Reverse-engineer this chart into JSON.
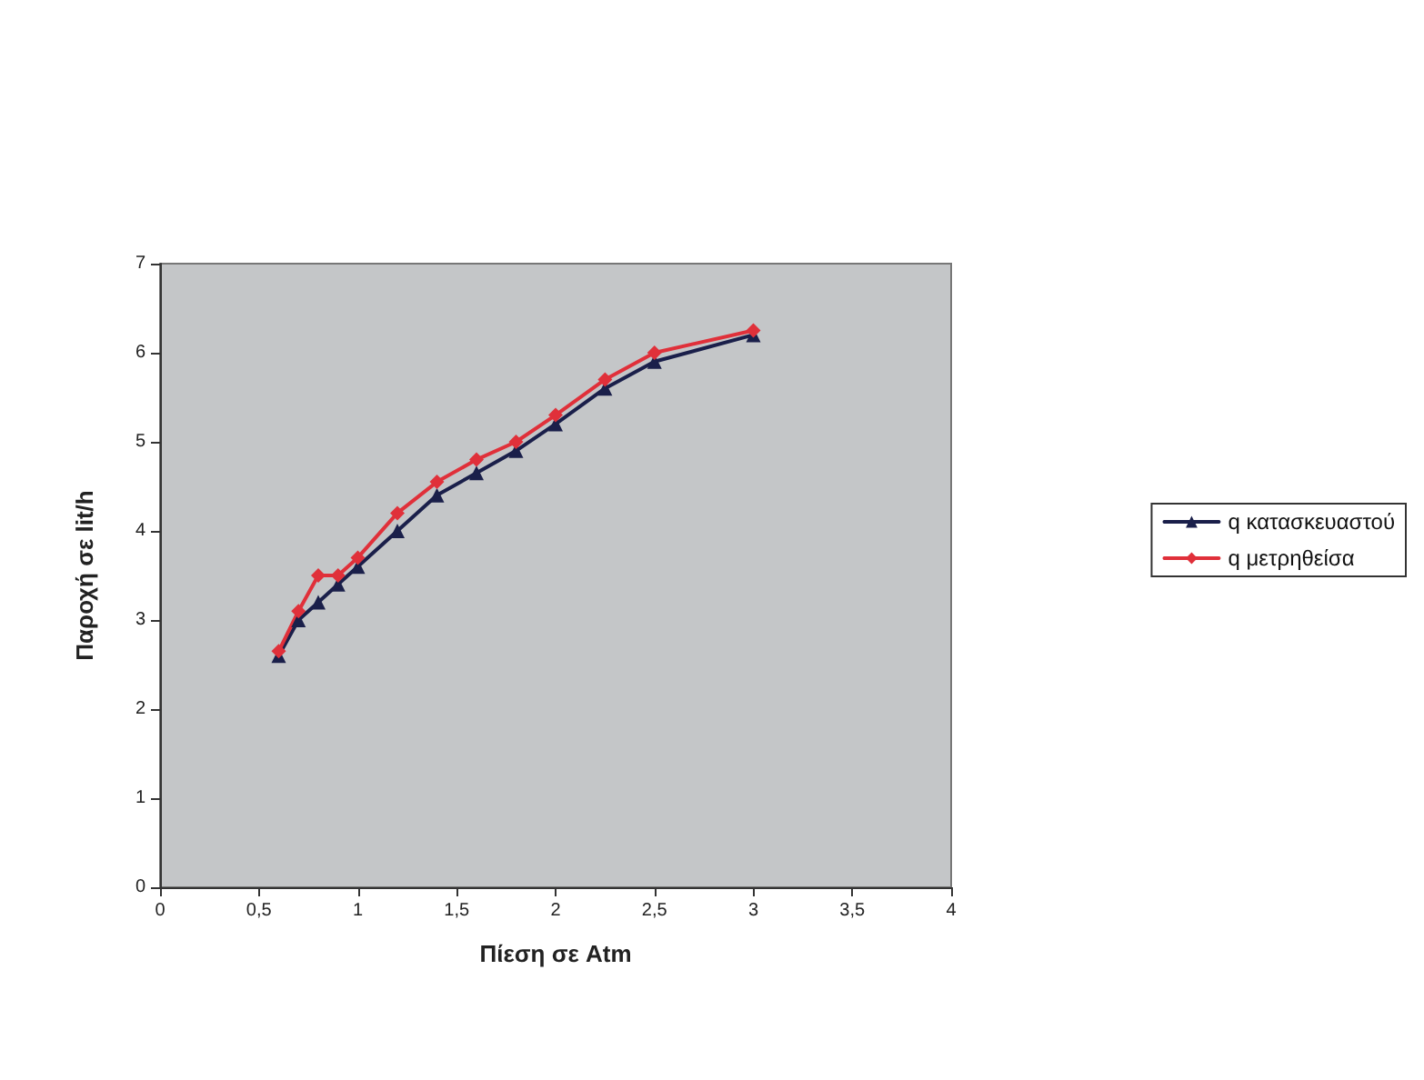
{
  "chart_data": {
    "type": "line",
    "xlabel": "Πίεση σε Atm",
    "ylabel": "Παροχή σε lit/h",
    "xlim": [
      0,
      4
    ],
    "xticks": [
      0,
      {
        "value": 0.5,
        "label": "0,5"
      },
      1,
      {
        "value": 1.5,
        "label": "1,5"
      },
      2,
      {
        "value": 2.5,
        "label": "2,5"
      },
      3,
      {
        "value": 3.5,
        "label": "3,5"
      },
      4
    ],
    "ylim": [
      0,
      7
    ],
    "yticks": [
      0,
      1,
      2,
      3,
      4,
      5,
      6,
      7
    ],
    "x": [
      0.6,
      0.7,
      0.8,
      0.9,
      1.0,
      1.2,
      1.4,
      1.6,
      1.8,
      2.0,
      2.25,
      2.5,
      3.0
    ],
    "series": [
      {
        "name": "q κατασκευαστού",
        "color": "#1a1f4a",
        "marker": "triangle",
        "values": [
          2.6,
          3.0,
          3.2,
          3.4,
          3.6,
          4.0,
          4.4,
          4.65,
          4.9,
          5.2,
          5.6,
          5.9,
          6.2
        ]
      },
      {
        "name": "q μετρηθείσα",
        "color": "#e0303a",
        "marker": "diamond",
        "values": [
          2.65,
          3.1,
          3.5,
          3.5,
          3.7,
          4.2,
          4.55,
          4.8,
          5.0,
          5.3,
          5.7,
          6.0,
          6.25
        ]
      }
    ],
    "legend": "right",
    "grid": false
  }
}
